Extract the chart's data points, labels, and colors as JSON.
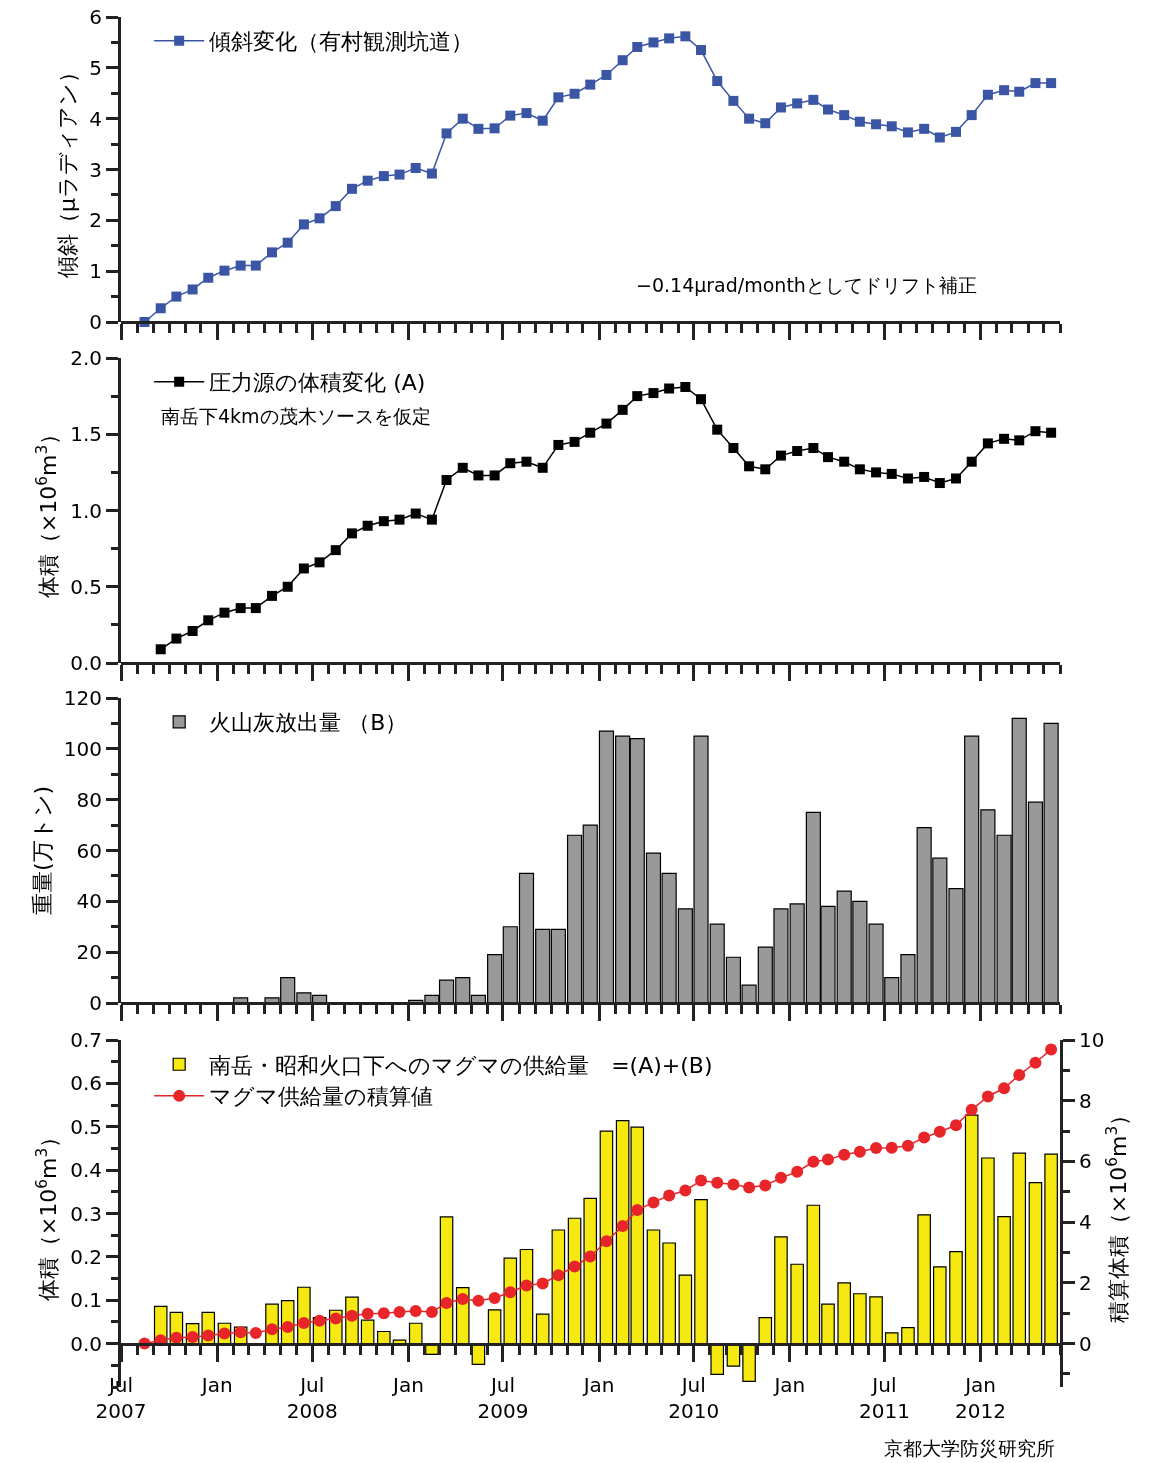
{
  "chart_data": [
    {
      "type": "line",
      "xlim": [
        "2007-07-01",
        "2012-06-01"
      ],
      "ylim": [
        0,
        6
      ],
      "yticks": [
        0,
        1,
        2,
        3,
        4,
        5,
        6
      ],
      "tick_labels": "y",
      "legend": "top left",
      "marker": "square",
      "ylabel": "傾斜（μラディアン）",
      "xticks": [
        "2007-07-01",
        "2008-01-01",
        "2008-07-01",
        "2009-01-01",
        "2009-07-01",
        "2010-01-01",
        "2010-07-01",
        "2011-01-01",
        "2011-07-01",
        "2012-01-01"
      ],
      "x": [
        "2007-08-15",
        "2007-09-15",
        "2007-10-15",
        "2007-11-15",
        "2007-12-15",
        "2008-01-15",
        "2008-02-15",
        "2008-03-15",
        "2008-04-15",
        "2008-05-15",
        "2008-06-15",
        "2008-07-15",
        "2008-08-15",
        "2008-09-15",
        "2008-10-15",
        "2008-11-15",
        "2008-12-15",
        "2009-01-15",
        "2009-02-15",
        "2009-03-15",
        "2009-04-15",
        "2009-05-15",
        "2009-06-15",
        "2009-07-15",
        "2009-08-15",
        "2009-09-15",
        "2009-10-15",
        "2009-11-15",
        "2009-12-15",
        "2010-01-15",
        "2010-02-15",
        "2010-03-15",
        "2010-04-15",
        "2010-05-15",
        "2010-06-15",
        "2010-07-15",
        "2010-08-15",
        "2010-09-15",
        "2010-10-15",
        "2010-11-15",
        "2010-12-15",
        "2011-01-15",
        "2011-02-15",
        "2011-03-15",
        "2011-04-15",
        "2011-05-15",
        "2011-06-15",
        "2011-07-15",
        "2011-08-15",
        "2011-09-15",
        "2011-10-15",
        "2011-11-15",
        "2011-12-15",
        "2012-01-15",
        "2012-02-15",
        "2012-03-15",
        "2012-04-15",
        "2012-05-15"
      ],
      "series": [
        {
          "name": "傾斜変化（有村観測坑道）",
          "color": "#3a55a4",
          "values": [
            0,
            0.27,
            0.5,
            0.64,
            0.87,
            1.01,
            1.11,
            1.11,
            1.37,
            1.56,
            1.92,
            2.04,
            2.28,
            2.62,
            2.78,
            2.87,
            2.9,
            3.03,
            2.92,
            3.71,
            4.0,
            3.8,
            3.81,
            4.06,
            4.11,
            3.96,
            4.42,
            4.49,
            4.67,
            4.86,
            5.15,
            5.41,
            5.5,
            5.58,
            5.62,
            5.35,
            4.74,
            4.35,
            4.0,
            3.91,
            4.22,
            4.3,
            4.37,
            4.18,
            4.07,
            3.94,
            3.89,
            3.85,
            3.73,
            3.8,
            3.63,
            3.74,
            4.07,
            4.47,
            4.56,
            4.53,
            4.7,
            4.7
          ]
        }
      ],
      "annotations": [
        "−0.14μrad/monthとしてドリフト補正"
      ]
    },
    {
      "type": "line",
      "xlim": [
        "2007-07-01",
        "2012-06-01"
      ],
      "ylim": [
        0,
        2
      ],
      "yticks": [
        {
          "value": 0,
          "label": "0.0"
        },
        {
          "value": 0.5,
          "label": "0.5"
        },
        {
          "value": 1,
          "label": "1.0"
        },
        {
          "value": 1.5,
          "label": "1.5"
        },
        {
          "value": 2,
          "label": "2.0"
        }
      ],
      "tick_labels": "y",
      "legend": "top left",
      "marker": "square",
      "ylabel": "体積（×10$^{6}$m$^{3}$）",
      "xticks": [
        "2007-07-01",
        "2008-01-01",
        "2008-07-01",
        "2009-01-01",
        "2009-07-01",
        "2010-01-01",
        "2010-07-01",
        "2011-01-01",
        "2011-07-01",
        "2012-01-01"
      ],
      "series": [
        {
          "name": "圧力源の体積変化 (A)",
          "color": "#000000",
          "x": [
            "2007-09-15",
            "2007-10-15",
            "2007-11-15",
            "2007-12-15",
            "2008-01-15",
            "2008-02-15",
            "2008-03-15",
            "2008-04-15",
            "2008-05-15",
            "2008-06-15",
            "2008-07-15",
            "2008-08-15",
            "2008-09-15",
            "2008-10-15",
            "2008-11-15",
            "2008-12-15",
            "2009-01-15",
            "2009-02-15",
            "2009-03-15",
            "2009-04-15",
            "2009-05-15",
            "2009-06-15",
            "2009-07-15",
            "2009-08-15",
            "2009-09-15",
            "2009-10-15",
            "2009-11-15",
            "2009-12-15",
            "2010-01-15",
            "2010-02-15",
            "2010-03-15",
            "2010-04-15",
            "2010-05-15",
            "2010-06-15",
            "2010-07-15",
            "2010-08-15",
            "2010-09-15",
            "2010-10-15",
            "2010-11-15",
            "2010-12-15",
            "2011-01-15",
            "2011-02-15",
            "2011-03-15",
            "2011-04-15",
            "2011-05-15",
            "2011-06-15",
            "2011-07-15",
            "2011-08-15",
            "2011-09-15",
            "2011-10-15",
            "2011-11-15",
            "2011-12-15",
            "2012-01-15",
            "2012-02-15",
            "2012-03-15",
            "2012-04-15",
            "2012-05-15"
          ],
          "values": [
            0.09,
            0.16,
            0.21,
            0.28,
            0.33,
            0.36,
            0.36,
            0.44,
            0.5,
            0.62,
            0.66,
            0.74,
            0.85,
            0.9,
            0.93,
            0.94,
            0.98,
            0.94,
            1.2,
            1.28,
            1.23,
            1.23,
            1.31,
            1.32,
            1.28,
            1.43,
            1.45,
            1.51,
            1.57,
            1.66,
            1.75,
            1.77,
            1.8,
            1.81,
            1.73,
            1.53,
            1.41,
            1.29,
            1.27,
            1.36,
            1.39,
            1.41,
            1.35,
            1.32,
            1.27,
            1.25,
            1.24,
            1.21,
            1.22,
            1.18,
            1.21,
            1.32,
            1.44,
            1.47,
            1.46,
            1.52,
            1.51
          ]
        }
      ],
      "annotations": [
        "南岳下4kmの茂木ソースを仮定"
      ]
    },
    {
      "type": "bar",
      "xlim": [
        "2007-07-01",
        "2012-06-01"
      ],
      "ylim": [
        0,
        120
      ],
      "yticks": [
        0,
        20,
        40,
        60,
        80,
        100,
        120
      ],
      "tick_labels": "y",
      "legend": "top left",
      "ylabel": "重量(万トン)",
      "xticks": [
        "2007-07-01",
        "2008-01-01",
        "2008-07-01",
        "2009-01-01",
        "2009-07-01",
        "2010-01-01",
        "2010-07-01",
        "2011-01-01",
        "2011-07-01",
        "2012-01-01"
      ],
      "series": [
        {
          "name": "火山灰放出量 （B）",
          "color": "#999999",
          "x": [
            "2008-02-15",
            "2008-04-15",
            "2008-05-15",
            "2008-06-15",
            "2008-07-15",
            "2009-01-15",
            "2009-02-15",
            "2009-03-15",
            "2009-04-15",
            "2009-05-15",
            "2009-06-15",
            "2009-07-15",
            "2009-08-15",
            "2009-09-15",
            "2009-10-15",
            "2009-11-15",
            "2009-12-15",
            "2010-01-15",
            "2010-02-15",
            "2010-03-15",
            "2010-04-15",
            "2010-05-15",
            "2010-06-15",
            "2010-07-15",
            "2010-08-15",
            "2010-09-15",
            "2010-10-15",
            "2010-11-15",
            "2010-12-15",
            "2011-01-15",
            "2011-02-15",
            "2011-03-15",
            "2011-04-15",
            "2011-05-15",
            "2011-06-15",
            "2011-07-15",
            "2011-08-15",
            "2011-09-15",
            "2011-10-15",
            "2011-11-15",
            "2011-12-15",
            "2012-01-15",
            "2012-02-15",
            "2012-03-15",
            "2012-04-15",
            "2012-05-15"
          ],
          "values": [
            2,
            2,
            10,
            4,
            3,
            1,
            3,
            9,
            10,
            3,
            19,
            30,
            51,
            29,
            29,
            66,
            70,
            107,
            105,
            104,
            59,
            51,
            37,
            105,
            31,
            18,
            7,
            22,
            37,
            39,
            75,
            38,
            44,
            40,
            31,
            10,
            19,
            69,
            57,
            45,
            105,
            76,
            66,
            112,
            79,
            110
          ]
        }
      ]
    },
    {
      "type": "bar",
      "xlim": [
        "2007-07-01",
        "2012-06-01"
      ],
      "ylim": [
        -0.1,
        0.7
      ],
      "yticks": [
        {
          "value": 0,
          "label": "0.0"
        },
        0.1,
        0.2,
        0.3,
        0.4,
        0.5,
        0.6,
        0.7
      ],
      "y2lim": [
        -1.43,
        10
      ],
      "y2ticks": [
        0,
        2,
        4,
        6,
        8,
        10
      ],
      "legend": "top left",
      "marker": "circle",
      "ylabel": "体積（×10$^{6}$m$^{3}$）",
      "y2label": "積算体積（×10$^{6}$m$^{3}$）",
      "xticks": [
        {
          "value": "2007-07-01",
          "label": "Jul\n2007"
        },
        {
          "value": "2008-01-01",
          "label": "Jan"
        },
        {
          "value": "2008-07-01",
          "label": "Jul\n2008"
        },
        {
          "value": "2009-01-01",
          "label": "Jan"
        },
        {
          "value": "2009-07-01",
          "label": "Jul\n2009"
        },
        {
          "value": "2010-01-01",
          "label": "Jan"
        },
        {
          "value": "2010-07-01",
          "label": "Jul\n2010"
        },
        {
          "value": "2011-01-01",
          "label": "Jan"
        },
        {
          "value": "2011-07-01",
          "label": "Jul\n2011"
        },
        {
          "value": "2012-01-01",
          "label": "Jan\n2012"
        }
      ],
      "x": [
        "2007-08-15",
        "2007-09-15",
        "2007-10-15",
        "2007-11-15",
        "2007-12-15",
        "2008-01-15",
        "2008-02-15",
        "2008-03-15",
        "2008-04-15",
        "2008-05-15",
        "2008-06-15",
        "2008-07-15",
        "2008-08-15",
        "2008-09-15",
        "2008-10-15",
        "2008-11-15",
        "2008-12-15",
        "2009-01-15",
        "2009-02-15",
        "2009-03-15",
        "2009-04-15",
        "2009-05-15",
        "2009-06-15",
        "2009-07-15",
        "2009-08-15",
        "2009-09-15",
        "2009-10-15",
        "2009-11-15",
        "2009-12-15",
        "2010-01-15",
        "2010-02-15",
        "2010-03-15",
        "2010-04-15",
        "2010-05-15",
        "2010-06-15",
        "2010-07-15",
        "2010-08-15",
        "2010-09-15",
        "2010-10-15",
        "2010-11-15",
        "2010-12-15",
        "2011-01-15",
        "2011-02-15",
        "2011-03-15",
        "2011-04-15",
        "2011-05-15",
        "2011-06-15",
        "2011-07-15",
        "2011-08-15",
        "2011-09-15",
        "2011-10-15",
        "2011-11-15",
        "2011-12-15",
        "2012-01-15",
        "2012-02-15",
        "2012-03-15",
        "2012-04-15",
        "2012-05-15"
      ],
      "series": [
        {
          "name": "南岳・昭和火口下へのマグマの供給量　=(A)+(B)",
          "color": "#f5e911",
          "values": [
            null,
            0.086,
            0.072,
            0.046,
            0.072,
            0.047,
            0.038,
            null,
            0.091,
            0.099,
            0.13,
            0.06,
            0.077,
            0.107,
            0.054,
            0.028,
            0.008,
            0.047,
            -0.025,
            0.292,
            0.129,
            -0.048,
            0.078,
            0.197,
            0.217,
            0.068,
            0.262,
            0.289,
            0.335,
            0.49,
            0.514,
            0.499,
            0.262,
            0.232,
            0.158,
            0.332,
            -0.071,
            -0.052,
            -0.087,
            0.06,
            0.246,
            0.183,
            0.319,
            0.091,
            0.14,
            0.115,
            0.108,
            0.025,
            0.037,
            0.297,
            0.177,
            0.212,
            0.527,
            0.428,
            0.293,
            0.439,
            0.371,
            0.437
          ]
        },
        {
          "name": "マグマ供給量の積算値",
          "color": "#e8262a",
          "type": "line",
          "axis": "y2",
          "values": [
            0,
            0.11,
            0.19,
            0.22,
            0.27,
            0.33,
            0.37,
            0.35,
            0.47,
            0.55,
            0.68,
            0.75,
            0.83,
            0.92,
            0.98,
            1.0,
            1.04,
            1.07,
            1.04,
            1.34,
            1.47,
            1.41,
            1.5,
            1.69,
            1.91,
            1.98,
            2.25,
            2.54,
            2.87,
            3.37,
            3.87,
            4.4,
            4.65,
            4.88,
            5.04,
            5.37,
            5.3,
            5.24,
            5.14,
            5.21,
            5.46,
            5.66,
            5.99,
            6.06,
            6.22,
            6.32,
            6.44,
            6.45,
            6.52,
            6.79,
            6.98,
            7.19,
            7.7,
            8.14,
            8.41,
            8.85,
            9.25,
            9.69
          ]
        }
      ],
      "annotations": [
        "京都大学防災研究所"
      ]
    }
  ]
}
